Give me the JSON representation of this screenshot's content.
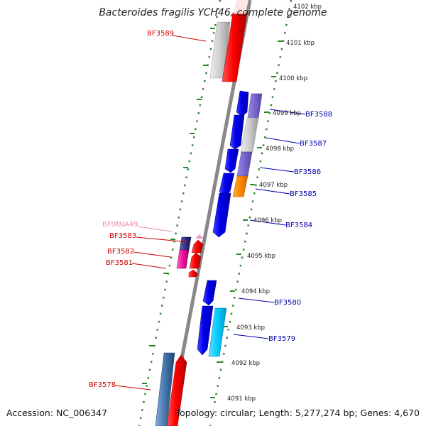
{
  "title": "Bacteroides fragilis YCH46, complete genome",
  "footer": {
    "accession": "Accession: NC_006347",
    "topology": "Topology: circular; Length: 5,277,274 bp; Genes: 4,670"
  },
  "colors": {
    "backbone": "#888888",
    "scale_dots": "#2a8a2a",
    "label_red": "#cc0000",
    "label_blue": "#0000aa",
    "label_pink": "#ee88bb"
  },
  "kbp_ticks": [
    "4102 kbp",
    "4101 kbp",
    "4100 kbp",
    "4099 kbp",
    "4098 kbp",
    "4097 kbp",
    "4096 kbp",
    "4095 kbp",
    "4094 kbp",
    "4093 kbp",
    "4092 kbp",
    "4091 kbp"
  ],
  "gene_labels": {
    "BF3589": "BF3589",
    "BF3588": "BF3588",
    "BF3587": "BF3587",
    "BF3586": "BF3586",
    "BF3585": "BF3585",
    "BF3584": "BF3584",
    "BFtRNA49": "BFtRNA49",
    "BF3583": "BF3583",
    "BF3582": "BF3582",
    "BF3581": "BF3581",
    "BF3580": "BF3580",
    "BF3579": "BF3579",
    "BF3578": "BF3578"
  }
}
